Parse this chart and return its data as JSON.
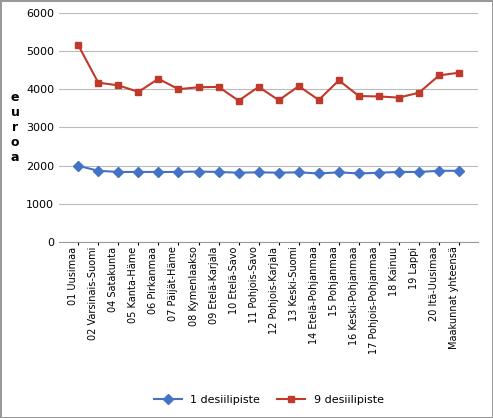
{
  "categories": [
    "01 Uusimaa",
    "02 Varsinais-Suomi",
    "04 Satakunta",
    "05 Kanta-Häme",
    "06 Pirkanmaa",
    "07 Päijät-Häme",
    "08 Kymenlaakso",
    "09 Etelä-Karjala",
    "10 Etelä-Savo",
    "11 Pohjois-Savo",
    "12 Pohjois-Karjala",
    "13 Keski-Suomi",
    "14 Etelä-Pohjanmaa",
    "15 Pohjanmaa",
    "16 Keski-Pohjanmaa",
    "17 Pohjois-Pohjanmaa",
    "18 Kainuu",
    "19 Lappi",
    "20 Itä-Uusimaa",
    "Maakunnat yhteensä"
  ],
  "series_1": [
    2000,
    1870,
    1840,
    1840,
    1840,
    1840,
    1850,
    1840,
    1820,
    1830,
    1820,
    1830,
    1800,
    1830,
    1800,
    1820,
    1840,
    1840,
    1870,
    1870
  ],
  "series_9": [
    5150,
    4170,
    4100,
    3930,
    4270,
    4000,
    4050,
    4060,
    3700,
    4060,
    3710,
    4080,
    3720,
    4230,
    3820,
    3810,
    3780,
    3910,
    4360,
    4430
  ],
  "color_1": "#4472c4",
  "color_9": "#c0392b",
  "ylabel_chars": [
    "e",
    "u",
    "r",
    "o",
    "a"
  ],
  "ylim": [
    0,
    6000
  ],
  "yticks": [
    0,
    1000,
    2000,
    3000,
    4000,
    5000,
    6000
  ],
  "legend_1": "1 desiilipiste",
  "legend_9": "9 desiilipiste",
  "grid_color": "#bbbbbb",
  "bg_color": "#ffffff",
  "border_color": "#999999",
  "linewidth": 1.5,
  "markersize": 5,
  "tick_fontsize": 7,
  "ylabel_fontsize": 9
}
